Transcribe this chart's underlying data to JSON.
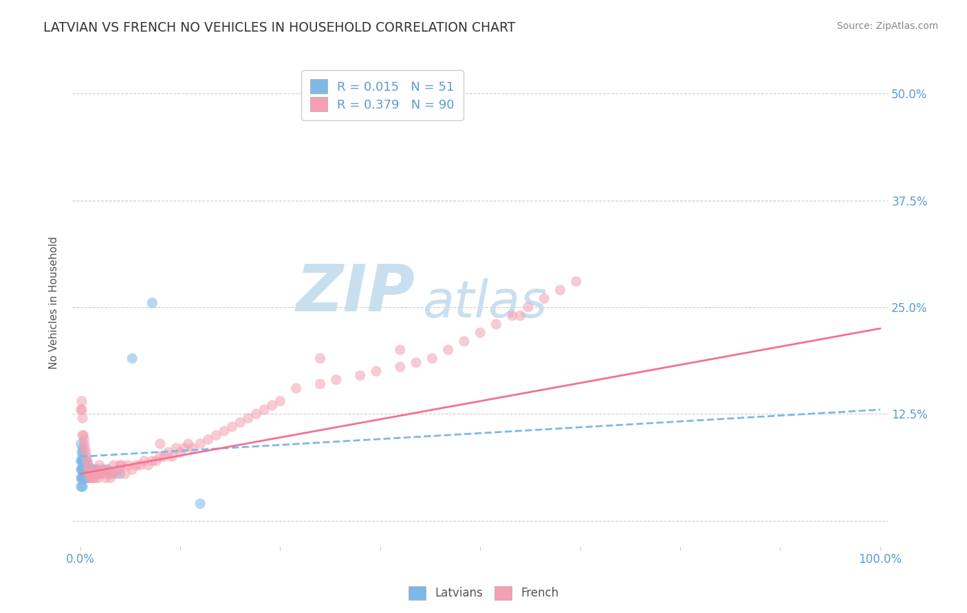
{
  "title": "LATVIAN VS FRENCH NO VEHICLES IN HOUSEHOLD CORRELATION CHART",
  "source_text": "Source: ZipAtlas.com",
  "ylabel": "No Vehicles in Household",
  "xlim": [
    -0.01,
    1.01
  ],
  "ylim": [
    -0.03,
    0.54
  ],
  "xticks": [
    0.0,
    0.125,
    0.25,
    0.375,
    0.5,
    0.625,
    0.75,
    0.875,
    1.0
  ],
  "yticks": [
    0.0,
    0.125,
    0.25,
    0.375,
    0.5
  ],
  "xtick_labels": [
    "0.0%",
    "",
    "",
    "",
    "",
    "",
    "",
    "",
    "100.0%"
  ],
  "ytick_labels_right": [
    "",
    "12.5%",
    "25.0%",
    "37.5%",
    "50.0%"
  ],
  "latvian_R": 0.015,
  "latvian_N": 51,
  "french_R": 0.379,
  "french_N": 90,
  "latvian_color": "#7cb9e8",
  "french_color": "#f4a0b0",
  "latvian_trend_color": "#7cb9e8",
  "french_trend_color": "#f47090",
  "title_color": "#333333",
  "tick_label_color": "#5b9bd5",
  "watermark_zip": "ZIP",
  "watermark_atlas": "atlas",
  "watermark_color": "#c8dff0",
  "background_color": "#ffffff",
  "legend_R_color": "#5b9bd5",
  "latvian_x": [
    0.001,
    0.001,
    0.001,
    0.001,
    0.001,
    0.002,
    0.002,
    0.002,
    0.002,
    0.002,
    0.002,
    0.002,
    0.002,
    0.003,
    0.003,
    0.003,
    0.003,
    0.003,
    0.003,
    0.003,
    0.004,
    0.004,
    0.004,
    0.005,
    0.005,
    0.005,
    0.006,
    0.006,
    0.007,
    0.007,
    0.008,
    0.008,
    0.009,
    0.01,
    0.01,
    0.011,
    0.012,
    0.013,
    0.015,
    0.016,
    0.018,
    0.02,
    0.022,
    0.025,
    0.03,
    0.035,
    0.04,
    0.05,
    0.065,
    0.09,
    0.15
  ],
  "latvian_y": [
    0.04,
    0.05,
    0.06,
    0.07,
    0.09,
    0.04,
    0.05,
    0.06,
    0.07,
    0.08,
    0.05,
    0.06,
    0.07,
    0.04,
    0.05,
    0.06,
    0.07,
    0.075,
    0.08,
    0.085,
    0.05,
    0.06,
    0.07,
    0.05,
    0.06,
    0.065,
    0.05,
    0.06,
    0.05,
    0.06,
    0.05,
    0.07,
    0.06,
    0.05,
    0.065,
    0.055,
    0.06,
    0.055,
    0.06,
    0.055,
    0.06,
    0.055,
    0.06,
    0.055,
    0.06,
    0.06,
    0.055,
    0.055,
    0.19,
    0.255,
    0.02
  ],
  "french_x": [
    0.001,
    0.002,
    0.002,
    0.003,
    0.003,
    0.004,
    0.005,
    0.005,
    0.006,
    0.007,
    0.008,
    0.009,
    0.01,
    0.01,
    0.011,
    0.012,
    0.013,
    0.014,
    0.015,
    0.016,
    0.017,
    0.018,
    0.019,
    0.02,
    0.021,
    0.022,
    0.024,
    0.026,
    0.028,
    0.03,
    0.032,
    0.034,
    0.036,
    0.038,
    0.04,
    0.042,
    0.045,
    0.048,
    0.052,
    0.056,
    0.06,
    0.065,
    0.07,
    0.075,
    0.08,
    0.085,
    0.09,
    0.095,
    0.1,
    0.105,
    0.11,
    0.115,
    0.12,
    0.125,
    0.13,
    0.135,
    0.14,
    0.15,
    0.16,
    0.17,
    0.18,
    0.19,
    0.2,
    0.21,
    0.22,
    0.23,
    0.24,
    0.25,
    0.27,
    0.3,
    0.32,
    0.35,
    0.37,
    0.4,
    0.42,
    0.44,
    0.46,
    0.48,
    0.5,
    0.52,
    0.54,
    0.56,
    0.58,
    0.6,
    0.62,
    0.4,
    0.55,
    0.3,
    0.1,
    0.05
  ],
  "french_y": [
    0.13,
    0.13,
    0.14,
    0.12,
    0.1,
    0.1,
    0.09,
    0.095,
    0.085,
    0.08,
    0.075,
    0.07,
    0.065,
    0.06,
    0.055,
    0.05,
    0.055,
    0.055,
    0.05,
    0.05,
    0.055,
    0.05,
    0.055,
    0.06,
    0.055,
    0.05,
    0.065,
    0.055,
    0.06,
    0.055,
    0.05,
    0.06,
    0.055,
    0.05,
    0.055,
    0.065,
    0.055,
    0.06,
    0.065,
    0.055,
    0.065,
    0.06,
    0.065,
    0.065,
    0.07,
    0.065,
    0.07,
    0.07,
    0.075,
    0.075,
    0.08,
    0.075,
    0.085,
    0.08,
    0.085,
    0.09,
    0.085,
    0.09,
    0.095,
    0.1,
    0.105,
    0.11,
    0.115,
    0.12,
    0.125,
    0.13,
    0.135,
    0.14,
    0.155,
    0.16,
    0.165,
    0.17,
    0.175,
    0.18,
    0.185,
    0.19,
    0.2,
    0.21,
    0.22,
    0.23,
    0.24,
    0.25,
    0.26,
    0.27,
    0.28,
    0.2,
    0.24,
    0.19,
    0.09,
    0.065
  ],
  "french_trend_start_x": 0.0,
  "french_trend_start_y": 0.055,
  "french_trend_end_x": 1.0,
  "french_trend_end_y": 0.225,
  "latvian_trend_start_x": 0.0,
  "latvian_trend_start_y": 0.075,
  "latvian_trend_end_x": 1.0,
  "latvian_trend_end_y": 0.13
}
